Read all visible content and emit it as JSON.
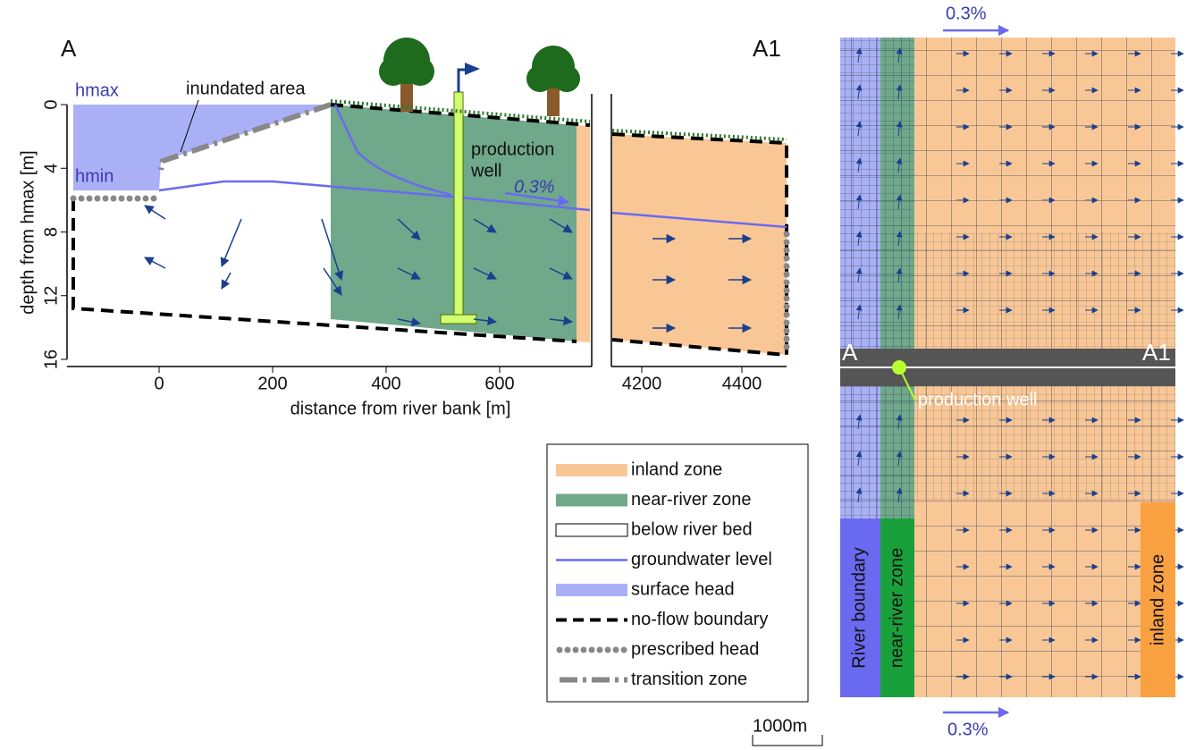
{
  "cross_section": {
    "left_label": "A",
    "right_label": "A1",
    "hmax": "hmax",
    "hmin": "hmin",
    "inundated": "inundated area",
    "well_label": [
      "production",
      "well"
    ],
    "gradient": "0.3%",
    "y_axis_title": "depth from hmax [m]",
    "x_axis_title": "distance from river bank [m]",
    "yticks": [
      "0",
      "4",
      "8",
      "12",
      "16"
    ],
    "xticks": [
      "0",
      "200",
      "400",
      "600"
    ],
    "xticks_far": [
      "4200",
      "4400"
    ]
  },
  "legend": [
    "inland zone",
    "near-river zone",
    "below river bed",
    "groundwater level",
    "surface head",
    "no-flow boundary",
    "prescribed head",
    "transition zone"
  ],
  "plan_view": {
    "gradient_top": "0.3%",
    "gradient_bottom": "0.3%",
    "left_label": "A",
    "right_label": "A1",
    "well": "production well",
    "zones": [
      "River boundary",
      "near-river zone",
      "inland zone"
    ],
    "scale": "1000m"
  }
}
